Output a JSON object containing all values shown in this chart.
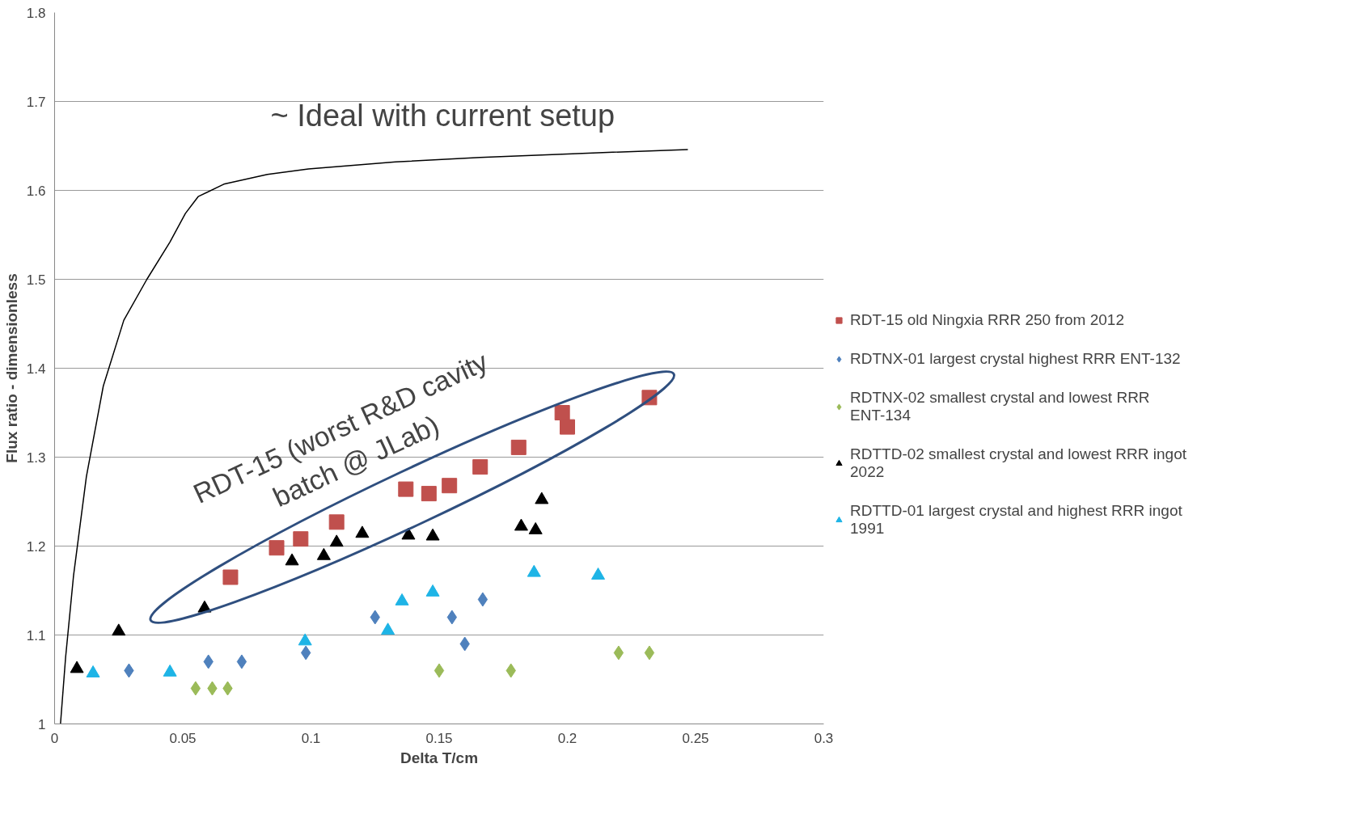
{
  "chart_data": {
    "type": "scatter",
    "xlabel": "Delta T/cm",
    "ylabel": "Flux ratio - dimensionless",
    "xlim": [
      0,
      0.3
    ],
    "ylim": [
      1,
      1.8
    ],
    "xticks": [
      0,
      0.05,
      0.1,
      0.15,
      0.2,
      0.25,
      0.3
    ],
    "yticks": [
      1,
      1.1,
      1.2,
      1.3,
      1.4,
      1.5,
      1.6,
      1.7,
      1.8
    ],
    "grid": "y",
    "legend": "right",
    "annotations": [
      "~ Ideal with current setup",
      "RDT-15 (worst R&D cavity\nbatch @ JLab)"
    ],
    "series": [
      {
        "name": "RDT-15 old Ningxia RRR 250 from 2012",
        "color": "#c0504d",
        "marker": "square",
        "x": [
          0.0686,
          0.0866,
          0.096,
          0.11,
          0.137,
          0.146,
          0.154,
          0.166,
          0.181,
          0.198,
          0.2,
          0.232
        ],
        "values": [
          1.165,
          1.198,
          1.208,
          1.227,
          1.264,
          1.259,
          1.268,
          1.289,
          1.311,
          1.35,
          1.334,
          1.367
        ]
      },
      {
        "name": "RDTNX-01 largest crystal highest RRR ENT-132",
        "color": "#4f81bd",
        "marker": "diamond",
        "x": [
          0.029,
          0.06,
          0.073,
          0.098,
          0.125,
          0.155,
          0.16,
          0.167
        ],
        "values": [
          1.06,
          1.07,
          1.07,
          1.08,
          1.12,
          1.12,
          1.09,
          1.14
        ]
      },
      {
        "name": "RDTNX-02 smallest crystal and lowest RRR ENT-134",
        "color": "#9bbb59",
        "marker": "diamond",
        "x": [
          0.055,
          0.0615,
          0.0675,
          0.15,
          0.178,
          0.22,
          0.232
        ],
        "values": [
          1.04,
          1.04,
          1.04,
          1.06,
          1.06,
          1.08,
          1.08
        ]
      },
      {
        "name": "RDTTD-02 smallest crystal and lowest RRR ingot 2022",
        "color": "#000000",
        "marker": "triangle",
        "x": [
          0.0087,
          0.025,
          0.0585,
          0.0926,
          0.105,
          0.11,
          0.12,
          0.138,
          0.1475,
          0.182,
          0.1876,
          0.19
        ],
        "values": [
          1.062,
          1.104,
          1.13,
          1.183,
          1.189,
          1.204,
          1.214,
          1.212,
          1.211,
          1.222,
          1.218,
          1.252
        ]
      },
      {
        "name": "RDTTD-01 largest crystal and highest RRR ingot 1991",
        "color": "#1eb4e6",
        "marker": "triangle",
        "x": [
          0.015,
          0.045,
          0.0977,
          0.13,
          0.1355,
          0.1475,
          0.187,
          0.212
        ],
        "values": [
          1.057,
          1.058,
          1.093,
          1.105,
          1.138,
          1.148,
          1.17,
          1.167
        ]
      },
      {
        "type": "line",
        "color": "#000000",
        "marker": "none",
        "x": [
          0.0023,
          0.0043,
          0.0074,
          0.0124,
          0.019,
          0.027,
          0.036,
          0.045,
          0.051,
          0.056,
          0.066,
          0.083,
          0.099,
          0.133,
          0.166,
          0.2,
          0.247
        ],
        "values": [
          1.0,
          1.075,
          1.167,
          1.278,
          1.38,
          1.454,
          1.5,
          1.542,
          1.574,
          1.593,
          1.607,
          1.618,
          1.624,
          1.632,
          1.637,
          1.641,
          1.646
        ]
      }
    ]
  }
}
